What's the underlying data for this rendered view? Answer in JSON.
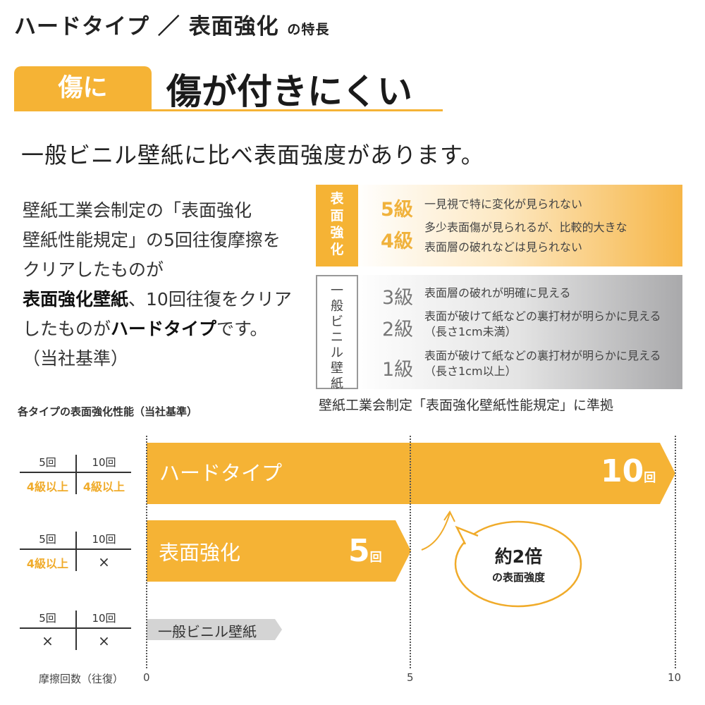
{
  "header": {
    "title": "ハードタイプ ／ 表面強化",
    "title_suffix": "の特長",
    "tag": "傷に",
    "heading": "傷が付きにくい",
    "subtitle": "一般ビニル壁紙に比べ表面強度があります。"
  },
  "description": {
    "lines": [
      "壁紙工業会制定の「表面強化",
      "壁紙性能規定」の5回往復摩擦を",
      "クリアしたものが"
    ],
    "bold1": "表面強化壁紙",
    "line4_rest": "、10回往復をクリア",
    "line5_pre": "したものが",
    "bold2": "ハードタイプ",
    "line5_post": "です。",
    "line6": "（当社基準）"
  },
  "grades": {
    "surface_label": "表面強化",
    "vinyl_label": "一般ビニル壁紙",
    "surface": [
      {
        "grade": "5級",
        "desc": [
          "一見視で特に変化が見られない"
        ]
      },
      {
        "grade": "4級",
        "desc": [
          "多少表面傷が見られるが、比較的大きな",
          "表面層の破れなどは見られない"
        ]
      }
    ],
    "vinyl": [
      {
        "grade": "3級",
        "desc": [
          "表面層の破れが明確に見える"
        ]
      },
      {
        "grade": "2級",
        "desc": [
          "表面が破けて紙などの裏打材が明らかに見える",
          "（長さ1cm未満）"
        ]
      },
      {
        "grade": "1級",
        "desc": [
          "表面が破けて紙などの裏打材が明らかに見える",
          "（長さ1cm以上）"
        ]
      }
    ],
    "caption": "壁紙工業会制定「表面強化壁紙性能規定」に準拠"
  },
  "chart_section": {
    "title": "各タイプの表面強化性能（当社基準）",
    "col5": "5回",
    "col10": "10回",
    "pass": "4級",
    "pass_suffix": "以上",
    "fail": "×",
    "axis_label": "摩擦回数（往復）",
    "bubble_main": "約2倍",
    "bubble_sub": "の表面強度"
  },
  "chart_data": {
    "type": "bar",
    "orientation": "horizontal",
    "xlim": [
      0,
      10
    ],
    "xticks": [
      "0",
      "5",
      "10"
    ],
    "xlabel": "摩擦回数（往復）",
    "categories": [
      "ハードタイプ",
      "表面強化",
      "一般ビニル壁紙"
    ],
    "values": [
      10,
      5,
      null
    ],
    "data_labels": [
      {
        "value": "10",
        "unit": "回"
      },
      {
        "value": "5",
        "unit": "回"
      },
      null
    ],
    "colors": {
      "orange": "#f5b335",
      "gray": "#d4d4d4"
    },
    "table": [
      {
        "5回": "4級以上",
        "10回": "4級以上"
      },
      {
        "5回": "4級以上",
        "10回": "×"
      },
      {
        "5回": "×",
        "10回": "×"
      }
    ]
  }
}
